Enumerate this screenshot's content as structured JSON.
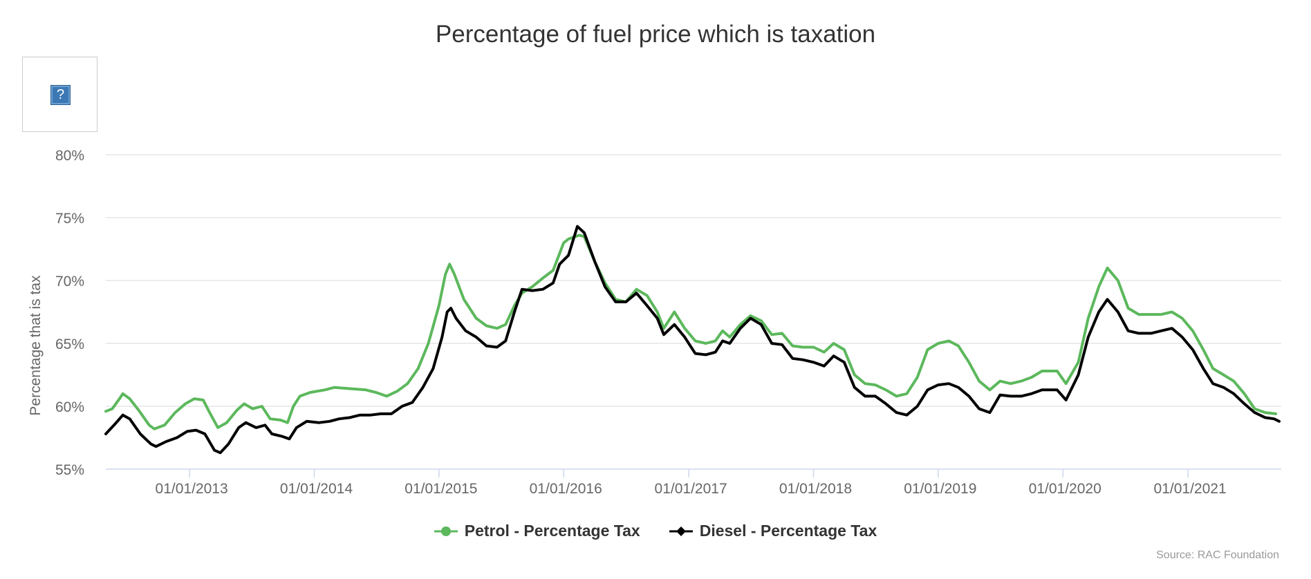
{
  "chart_data": {
    "type": "line",
    "title": "Percentage of fuel price which is taxation",
    "ylabel": "Percentage that is tax",
    "xlabel": "",
    "ylim": [
      55,
      80
    ],
    "yticks": [
      "55%",
      "60%",
      "65%",
      "70%",
      "75%",
      "80%"
    ],
    "ytick_values": [
      55,
      60,
      65,
      70,
      75,
      80
    ],
    "xlim": [
      "2012-05-01",
      "2021-10-01"
    ],
    "xticks": [
      "01/01/2013",
      "01/01/2014",
      "01/01/2015",
      "01/01/2016",
      "01/01/2017",
      "01/01/2018",
      "01/01/2019",
      "01/01/2020",
      "01/01/2021"
    ],
    "xtick_dates": [
      "2013-01-01",
      "2014-01-01",
      "2015-01-01",
      "2016-01-01",
      "2017-01-01",
      "2018-01-01",
      "2019-01-01",
      "2020-01-01",
      "2021-01-01"
    ],
    "grid": "horizontal",
    "legend_position": "bottom-center",
    "source": "Source: RAC Foundation",
    "series": [
      {
        "name": "Petrol - Percentage Tax",
        "color": "#5cb85c",
        "marker": "circle",
        "points": [
          [
            "2012-05-01",
            59.6
          ],
          [
            "2012-05-20",
            59.8
          ],
          [
            "2012-06-10",
            60.6
          ],
          [
            "2012-06-20",
            61.0
          ],
          [
            "2012-07-10",
            60.6
          ],
          [
            "2012-08-05",
            59.7
          ],
          [
            "2012-09-05",
            58.5
          ],
          [
            "2012-09-20",
            58.2
          ],
          [
            "2012-10-20",
            58.5
          ],
          [
            "2012-11-20",
            59.5
          ],
          [
            "2012-12-20",
            60.2
          ],
          [
            "2013-01-15",
            60.6
          ],
          [
            "2013-02-10",
            60.5
          ],
          [
            "2013-03-01",
            59.5
          ],
          [
            "2013-03-25",
            58.3
          ],
          [
            "2013-04-20",
            58.7
          ],
          [
            "2013-05-20",
            59.7
          ],
          [
            "2013-06-10",
            60.2
          ],
          [
            "2013-07-05",
            59.8
          ],
          [
            "2013-08-01",
            60.0
          ],
          [
            "2013-08-25",
            59.0
          ],
          [
            "2013-09-25",
            58.9
          ],
          [
            "2013-10-15",
            58.7
          ],
          [
            "2013-11-01",
            60.0
          ],
          [
            "2013-11-20",
            60.8
          ],
          [
            "2013-12-20",
            61.1
          ],
          [
            "2014-02-01",
            61.3
          ],
          [
            "2014-03-01",
            61.5
          ],
          [
            "2014-04-15",
            61.4
          ],
          [
            "2014-06-01",
            61.3
          ],
          [
            "2014-07-01",
            61.1
          ],
          [
            "2014-08-01",
            60.8
          ],
          [
            "2014-09-01",
            61.2
          ],
          [
            "2014-10-01",
            61.8
          ],
          [
            "2014-11-01",
            63.0
          ],
          [
            "2014-12-01",
            65.0
          ],
          [
            "2015-01-01",
            68.0
          ],
          [
            "2015-01-20",
            70.5
          ],
          [
            "2015-02-01",
            71.3
          ],
          [
            "2015-02-15",
            70.5
          ],
          [
            "2015-03-15",
            68.5
          ],
          [
            "2015-04-20",
            67.0
          ],
          [
            "2015-05-20",
            66.4
          ],
          [
            "2015-06-20",
            66.2
          ],
          [
            "2015-07-15",
            66.5
          ],
          [
            "2015-08-10",
            68.0
          ],
          [
            "2015-09-01",
            69.0
          ],
          [
            "2015-10-01",
            69.5
          ],
          [
            "2015-11-01",
            70.2
          ],
          [
            "2015-12-01",
            70.8
          ],
          [
            "2016-01-01",
            73.0
          ],
          [
            "2016-01-15",
            73.3
          ],
          [
            "2016-02-15",
            73.6
          ],
          [
            "2016-03-01",
            73.5
          ],
          [
            "2016-04-01",
            71.5
          ],
          [
            "2016-05-01",
            69.8
          ],
          [
            "2016-06-01",
            68.5
          ],
          [
            "2016-07-01",
            68.3
          ],
          [
            "2016-08-01",
            69.3
          ],
          [
            "2016-09-01",
            68.8
          ],
          [
            "2016-10-01",
            67.5
          ],
          [
            "2016-10-20",
            66.2
          ],
          [
            "2016-11-20",
            67.5
          ],
          [
            "2016-12-20",
            66.2
          ],
          [
            "2017-01-20",
            65.2
          ],
          [
            "2017-02-20",
            65.0
          ],
          [
            "2017-03-20",
            65.2
          ],
          [
            "2017-04-10",
            66.0
          ],
          [
            "2017-05-01",
            65.5
          ],
          [
            "2017-06-01",
            66.5
          ],
          [
            "2017-07-01",
            67.2
          ],
          [
            "2017-08-01",
            66.8
          ],
          [
            "2017-09-01",
            65.7
          ],
          [
            "2017-10-01",
            65.8
          ],
          [
            "2017-11-01",
            64.8
          ],
          [
            "2017-12-01",
            64.7
          ],
          [
            "2018-01-01",
            64.7
          ],
          [
            "2018-02-01",
            64.3
          ],
          [
            "2018-03-01",
            65.0
          ],
          [
            "2018-04-01",
            64.5
          ],
          [
            "2018-05-01",
            62.5
          ],
          [
            "2018-06-01",
            61.8
          ],
          [
            "2018-07-01",
            61.7
          ],
          [
            "2018-08-01",
            61.3
          ],
          [
            "2018-09-01",
            60.8
          ],
          [
            "2018-10-01",
            61.0
          ],
          [
            "2018-11-01",
            62.3
          ],
          [
            "2018-12-01",
            64.5
          ],
          [
            "2019-01-01",
            65.0
          ],
          [
            "2019-02-01",
            65.2
          ],
          [
            "2019-03-01",
            64.8
          ],
          [
            "2019-04-01",
            63.5
          ],
          [
            "2019-05-01",
            62.0
          ],
          [
            "2019-06-01",
            61.3
          ],
          [
            "2019-07-01",
            62.0
          ],
          [
            "2019-08-01",
            61.8
          ],
          [
            "2019-09-01",
            62.0
          ],
          [
            "2019-10-01",
            62.3
          ],
          [
            "2019-11-01",
            62.8
          ],
          [
            "2019-12-15",
            62.8
          ],
          [
            "2020-01-10",
            61.8
          ],
          [
            "2020-02-15",
            63.5
          ],
          [
            "2020-03-15",
            67.0
          ],
          [
            "2020-04-15",
            69.5
          ],
          [
            "2020-05-10",
            71.0
          ],
          [
            "2020-06-10",
            70.0
          ],
          [
            "2020-07-10",
            67.8
          ],
          [
            "2020-08-10",
            67.3
          ],
          [
            "2020-09-15",
            67.3
          ],
          [
            "2020-10-15",
            67.3
          ],
          [
            "2020-11-15",
            67.5
          ],
          [
            "2020-12-15",
            67.0
          ],
          [
            "2021-01-15",
            66.0
          ],
          [
            "2021-02-15",
            64.5
          ],
          [
            "2021-03-15",
            63.0
          ],
          [
            "2021-04-15",
            62.5
          ],
          [
            "2021-05-15",
            62.0
          ],
          [
            "2021-06-15",
            61.0
          ],
          [
            "2021-07-15",
            59.8
          ],
          [
            "2021-08-15",
            59.5
          ],
          [
            "2021-09-15",
            59.4
          ]
        ]
      },
      {
        "name": "Diesel - Percentage Tax",
        "color": "#000000",
        "marker": "diamond",
        "points": [
          [
            "2012-05-01",
            57.8
          ],
          [
            "2012-05-25",
            58.5
          ],
          [
            "2012-06-20",
            59.3
          ],
          [
            "2012-07-10",
            59.0
          ],
          [
            "2012-08-10",
            57.8
          ],
          [
            "2012-09-10",
            57.0
          ],
          [
            "2012-09-25",
            56.8
          ],
          [
            "2012-10-25",
            57.2
          ],
          [
            "2012-11-25",
            57.5
          ],
          [
            "2012-12-25",
            58.0
          ],
          [
            "2013-01-20",
            58.1
          ],
          [
            "2013-02-15",
            57.8
          ],
          [
            "2013-03-15",
            56.5
          ],
          [
            "2013-04-01",
            56.3
          ],
          [
            "2013-04-25",
            57.0
          ],
          [
            "2013-05-25",
            58.3
          ],
          [
            "2013-06-15",
            58.7
          ],
          [
            "2013-07-15",
            58.3
          ],
          [
            "2013-08-10",
            58.5
          ],
          [
            "2013-08-30",
            57.8
          ],
          [
            "2013-09-30",
            57.6
          ],
          [
            "2013-10-20",
            57.4
          ],
          [
            "2013-11-10",
            58.3
          ],
          [
            "2013-12-10",
            58.8
          ],
          [
            "2014-01-15",
            58.7
          ],
          [
            "2014-02-15",
            58.8
          ],
          [
            "2014-03-15",
            59.0
          ],
          [
            "2014-04-15",
            59.1
          ],
          [
            "2014-05-15",
            59.3
          ],
          [
            "2014-06-15",
            59.3
          ],
          [
            "2014-07-15",
            59.4
          ],
          [
            "2014-08-15",
            59.4
          ],
          [
            "2014-09-15",
            60.0
          ],
          [
            "2014-10-15",
            60.3
          ],
          [
            "2014-11-15",
            61.5
          ],
          [
            "2014-12-15",
            63.0
          ],
          [
            "2015-01-10",
            65.5
          ],
          [
            "2015-01-25",
            67.5
          ],
          [
            "2015-02-05",
            67.8
          ],
          [
            "2015-02-20",
            67.0
          ],
          [
            "2015-03-20",
            66.0
          ],
          [
            "2015-04-20",
            65.5
          ],
          [
            "2015-05-20",
            64.8
          ],
          [
            "2015-06-20",
            64.7
          ],
          [
            "2015-07-15",
            65.2
          ],
          [
            "2015-08-10",
            67.5
          ],
          [
            "2015-09-01",
            69.3
          ],
          [
            "2015-10-01",
            69.2
          ],
          [
            "2015-11-01",
            69.3
          ],
          [
            "2015-12-01",
            69.8
          ],
          [
            "2015-12-20",
            71.3
          ],
          [
            "2016-01-15",
            72.0
          ],
          [
            "2016-02-01",
            73.5
          ],
          [
            "2016-02-10",
            74.3
          ],
          [
            "2016-03-01",
            73.8
          ],
          [
            "2016-04-01",
            71.5
          ],
          [
            "2016-05-01",
            69.5
          ],
          [
            "2016-06-01",
            68.3
          ],
          [
            "2016-07-01",
            68.3
          ],
          [
            "2016-08-01",
            69.0
          ],
          [
            "2016-09-01",
            68.0
          ],
          [
            "2016-10-01",
            67.0
          ],
          [
            "2016-10-20",
            65.7
          ],
          [
            "2016-11-20",
            66.5
          ],
          [
            "2016-12-20",
            65.5
          ],
          [
            "2017-01-20",
            64.2
          ],
          [
            "2017-02-20",
            64.1
          ],
          [
            "2017-03-20",
            64.3
          ],
          [
            "2017-04-10",
            65.2
          ],
          [
            "2017-05-01",
            65.0
          ],
          [
            "2017-06-01",
            66.2
          ],
          [
            "2017-07-01",
            67.0
          ],
          [
            "2017-08-01",
            66.5
          ],
          [
            "2017-09-01",
            65.0
          ],
          [
            "2017-10-01",
            64.9
          ],
          [
            "2017-11-01",
            63.8
          ],
          [
            "2017-12-01",
            63.7
          ],
          [
            "2018-01-01",
            63.5
          ],
          [
            "2018-02-01",
            63.2
          ],
          [
            "2018-03-01",
            64.0
          ],
          [
            "2018-04-01",
            63.5
          ],
          [
            "2018-05-01",
            61.5
          ],
          [
            "2018-06-01",
            60.8
          ],
          [
            "2018-07-01",
            60.8
          ],
          [
            "2018-08-01",
            60.2
          ],
          [
            "2018-09-01",
            59.5
          ],
          [
            "2018-10-01",
            59.3
          ],
          [
            "2018-11-01",
            60.0
          ],
          [
            "2018-12-01",
            61.3
          ],
          [
            "2019-01-01",
            61.7
          ],
          [
            "2019-02-01",
            61.8
          ],
          [
            "2019-03-01",
            61.5
          ],
          [
            "2019-04-01",
            60.8
          ],
          [
            "2019-05-01",
            59.8
          ],
          [
            "2019-06-01",
            59.5
          ],
          [
            "2019-07-01",
            60.9
          ],
          [
            "2019-08-01",
            60.8
          ],
          [
            "2019-09-01",
            60.8
          ],
          [
            "2019-10-01",
            61.0
          ],
          [
            "2019-11-01",
            61.3
          ],
          [
            "2019-12-15",
            61.3
          ],
          [
            "2020-01-10",
            60.5
          ],
          [
            "2020-02-15",
            62.5
          ],
          [
            "2020-03-15",
            65.5
          ],
          [
            "2020-04-15",
            67.5
          ],
          [
            "2020-05-10",
            68.5
          ],
          [
            "2020-06-10",
            67.5
          ],
          [
            "2020-07-10",
            66.0
          ],
          [
            "2020-08-10",
            65.8
          ],
          [
            "2020-09-15",
            65.8
          ],
          [
            "2020-10-15",
            66.0
          ],
          [
            "2020-11-15",
            66.2
          ],
          [
            "2020-12-15",
            65.5
          ],
          [
            "2021-01-15",
            64.5
          ],
          [
            "2021-02-15",
            63.0
          ],
          [
            "2021-03-15",
            61.8
          ],
          [
            "2021-04-15",
            61.5
          ],
          [
            "2021-05-15",
            61.0
          ],
          [
            "2021-06-15",
            60.2
          ],
          [
            "2021-07-15",
            59.5
          ],
          [
            "2021-08-15",
            59.1
          ],
          [
            "2021-09-10",
            59.0
          ],
          [
            "2021-09-25",
            58.8
          ]
        ]
      }
    ]
  },
  "help_icon": {
    "name": "help-icon",
    "glyph": "?"
  }
}
